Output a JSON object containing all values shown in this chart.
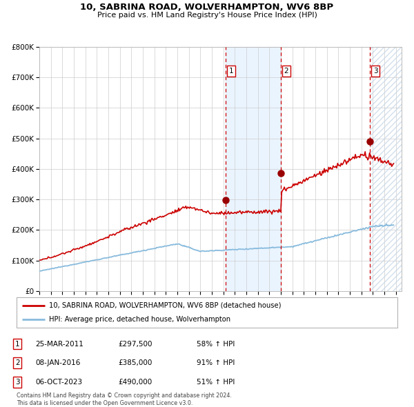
{
  "title": "10, SABRINA ROAD, WOLVERHAMPTON, WV6 8BP",
  "subtitle": "Price paid vs. HM Land Registry's House Price Index (HPI)",
  "legend_line1": "10, SABRINA ROAD, WOLVERHAMPTON, WV6 8BP (detached house)",
  "legend_line2": "HPI: Average price, detached house, Wolverhampton",
  "transactions": [
    {
      "label": "1",
      "date": "25-MAR-2011",
      "price": 297500,
      "hpi_pct": "58% ↑ HPI",
      "year": 2011.23
    },
    {
      "label": "2",
      "date": "08-JAN-2016",
      "price": 385000,
      "hpi_pct": "91% ↑ HPI",
      "year": 2016.03
    },
    {
      "label": "3",
      "date": "06-OCT-2023",
      "price": 490000,
      "hpi_pct": "51% ↑ HPI",
      "year": 2023.77
    }
  ],
  "footnote1": "Contains HM Land Registry data © Crown copyright and database right 2024.",
  "footnote2": "This data is licensed under the Open Government Licence v3.0.",
  "hpi_color": "#88bbdd",
  "price_color": "#cc0000",
  "marker_color": "#990000",
  "vline_color": "#cc0000",
  "shade_color": "#ddeeff",
  "ylim": [
    0,
    800000
  ],
  "xlim_start": 1995,
  "xlim_end": 2026.5
}
